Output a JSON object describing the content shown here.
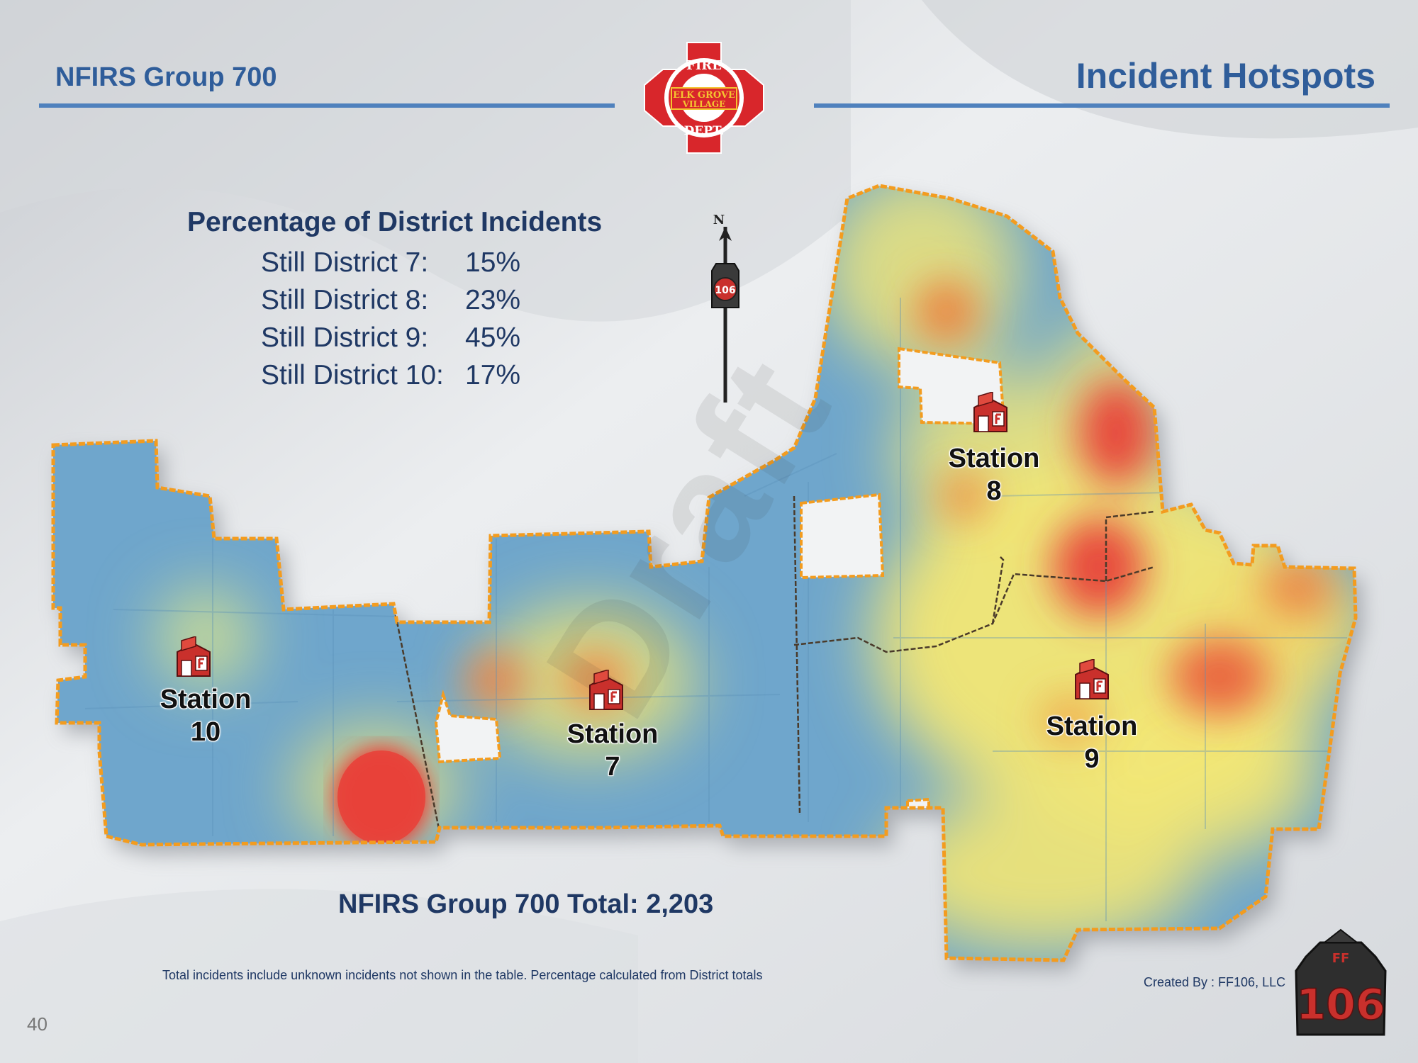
{
  "header": {
    "left_title": "NFIRS Group 700",
    "right_title": "Incident Hotspots"
  },
  "seal": {
    "text_top": "FIRE",
    "text_middle_1": "ELK GROVE",
    "text_middle_2": "VILLAGE",
    "text_bottom": "DEPT."
  },
  "stats": {
    "title": "Percentage of District Incidents",
    "rows": [
      {
        "label": "Still District 7:",
        "value": "15%"
      },
      {
        "label": "Still District 8:",
        "value": "23%"
      },
      {
        "label": "Still District 9:",
        "value": "45%"
      },
      {
        "label": "Still District 10:",
        "value": "17%"
      }
    ]
  },
  "compass": {
    "letter": "N",
    "badge": "106"
  },
  "stations": [
    {
      "name": "Station",
      "number": "10"
    },
    {
      "name": "Station",
      "number": "7"
    },
    {
      "name": "Station",
      "number": "8"
    },
    {
      "name": "Station",
      "number": "9"
    }
  ],
  "watermark": "Draft",
  "total": "NFIRS Group 700 Total:  2,203",
  "footnote": "Total incidents include unknown incidents not shown in the table. Percentage calculated from District totals",
  "credit": "Created By : FF106, LLC",
  "logo": {
    "top": "FF",
    "number": "106"
  },
  "page_number": "40",
  "colors": {
    "title_blue": "#2f5d9a",
    "text_navy": "#1f3864",
    "boundary_orange": "#f39c1f",
    "heat_low": "#6fa6cc",
    "heat_mid": "#f2e66b",
    "heat_high": "#e8413a"
  }
}
